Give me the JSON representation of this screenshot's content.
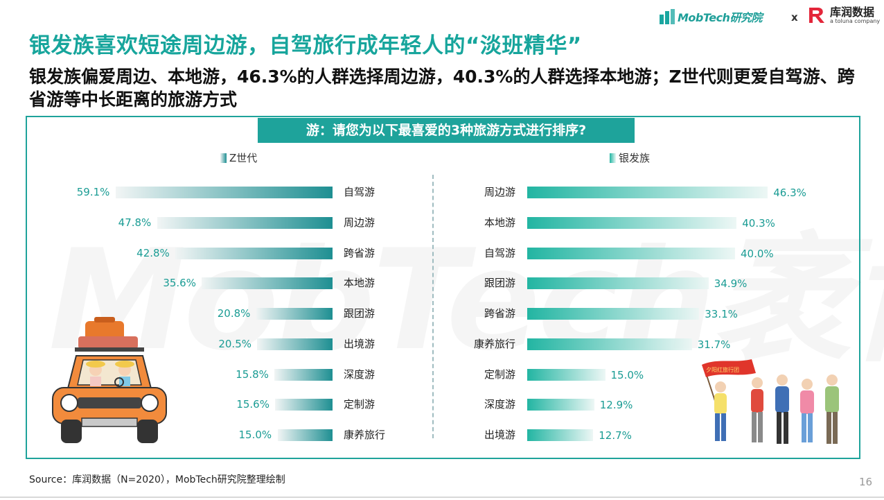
{
  "header": {
    "mobtech_logo": "MobTech研究院",
    "separator": "x",
    "partner_logo_name": "库润数据",
    "partner_logo_sub": "a toluna company"
  },
  "watermark": "MobTech袤博",
  "title": "银发族喜欢短途周边游，自驾旅行成年轻人的“淡班精华”",
  "subtitle": "银发族偏爱周边、本地游，46.3%的人群选择周边游，40.3%的人群选择本地游；Z世代则更爱自驾游、跨省游等中长距离的旅游方式",
  "question": "游：请您为以下最喜爱的3种旅游方式进行排序?",
  "chart_data": [
    {
      "type": "bar",
      "orientation": "horizontal",
      "series_name": "Z世代",
      "categories": [
        "自驾游",
        "周边游",
        "跨省游",
        "本地游",
        "跟团游",
        "出境游",
        "深度游",
        "定制游",
        "康养旅行"
      ],
      "values": [
        59.1,
        47.8,
        42.8,
        35.6,
        20.8,
        20.5,
        15.8,
        15.6,
        15.0
      ],
      "labels": [
        "59.1%",
        "47.8%",
        "42.8%",
        "35.6%",
        "20.8%",
        "20.5%",
        "15.8%",
        "15.6%",
        "15.0%"
      ],
      "unit": "%",
      "color": "#1e8f92"
    },
    {
      "type": "bar",
      "orientation": "horizontal",
      "series_name": "银发族",
      "categories": [
        "周边游",
        "本地游",
        "自驾游",
        "跟团游",
        "跨省游",
        "康养旅行",
        "定制游",
        "深度游",
        "出境游"
      ],
      "values": [
        46.3,
        40.3,
        40.0,
        34.9,
        33.1,
        31.7,
        15.0,
        12.9,
        12.7
      ],
      "labels": [
        "46.3%",
        "40.3%",
        "40.0%",
        "34.9%",
        "33.1%",
        "31.7%",
        "15.0%",
        "12.9%",
        "12.7%"
      ],
      "unit": "%",
      "color": "#22b5a2"
    }
  ],
  "footer": "Source：库润数据（N=2020），MobTech研究院整理绘制",
  "page_number": "16",
  "illustrations": [
    "car-illustration",
    "seniors-group-illustration"
  ],
  "banner_text": "夕阳红旅行团"
}
